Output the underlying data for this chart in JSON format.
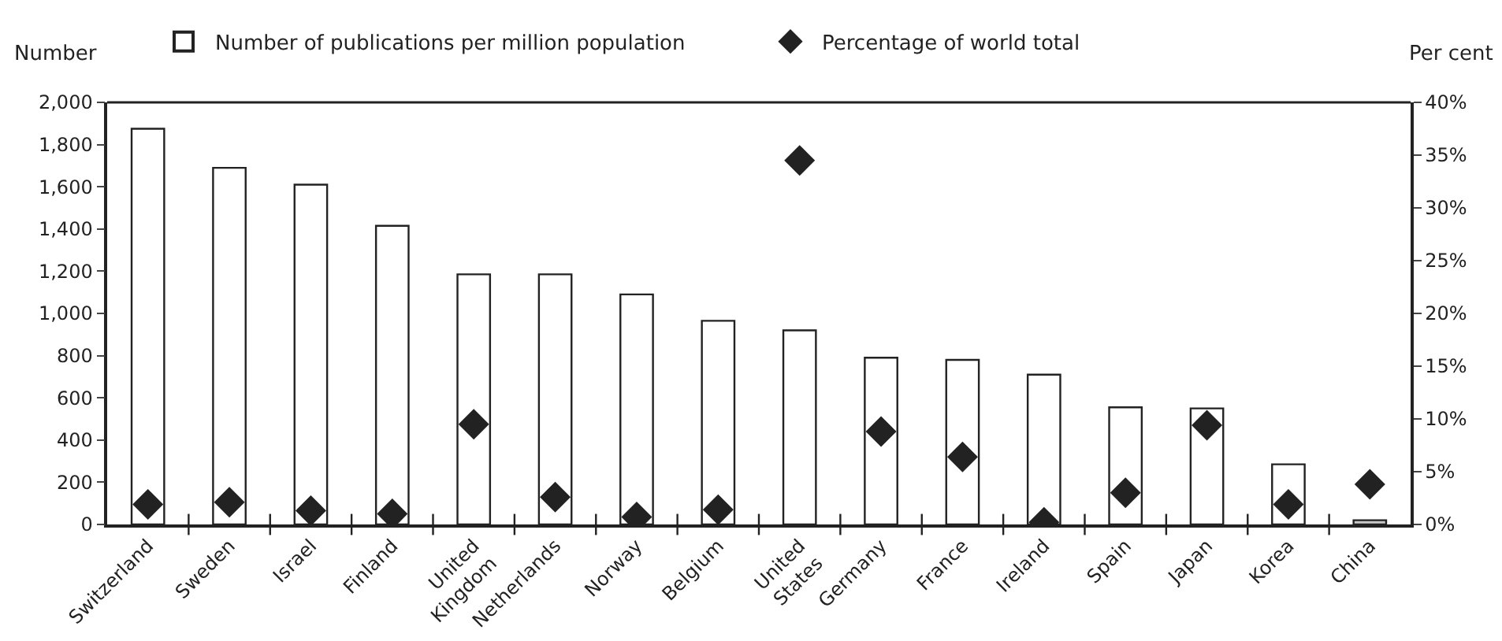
{
  "chart_data": {
    "type": "bar",
    "ylabel": "Number",
    "y2label": "Per cent",
    "categories": [
      "Switzerland",
      "Sweden",
      "Israel",
      "Finland",
      "United\nKingdom",
      "Netherlands",
      "Norway",
      "Belgium",
      "United\nStates",
      "Germany",
      "France",
      "Ireland",
      "Spain",
      "Japan",
      "Korea",
      "China"
    ],
    "series": [
      {
        "name": "Number of publications per million population",
        "colors": [
          "#ffffff",
          "#ffffff",
          "#ffffff",
          "#ffffff",
          "#ffffff",
          "#ffffff",
          "#ffffff",
          "#ffffff",
          "#ffffff",
          "#ffffff",
          "#ffffff",
          "#ffffff",
          "#ffffff",
          "#ffffff",
          "#ffffff",
          "#c8c8c8"
        ],
        "values": [
          1875,
          1690,
          1610,
          1415,
          1185,
          1185,
          1090,
          965,
          920,
          790,
          780,
          710,
          555,
          550,
          285,
          20
        ]
      },
      {
        "name": "Percentage of world total",
        "type": "scatter",
        "axis": "y2",
        "color": "#222222",
        "marker": "diamond",
        "values": [
          1.9,
          2.1,
          1.3,
          1.0,
          9.5,
          2.6,
          0.7,
          1.4,
          34.5,
          8.8,
          6.4,
          0.2,
          3.0,
          9.4,
          1.9,
          3.8
        ]
      }
    ],
    "ylim": [
      0,
      2000
    ],
    "yticks": [
      0,
      {
        "value": 200,
        "label": "200"
      },
      {
        "value": 400,
        "label": "400"
      },
      {
        "value": 600,
        "label": "600"
      },
      {
        "value": 800,
        "label": "800"
      },
      {
        "value": 1000,
        "label": "1,000"
      },
      {
        "value": 1200,
        "label": "1,200"
      },
      {
        "value": 1400,
        "label": "1,400"
      },
      {
        "value": 1600,
        "label": "1,600"
      },
      {
        "value": 1800,
        "label": "1,800"
      },
      {
        "value": 2000,
        "label": "2,000"
      }
    ],
    "y2lim": [
      0,
      40
    ],
    "y2ticks": [
      {
        "value": 0,
        "label": "0%"
      },
      {
        "value": 5,
        "label": "5%"
      },
      {
        "value": 10,
        "label": "10%"
      },
      {
        "value": 15,
        "label": "15%"
      },
      {
        "value": 20,
        "label": "20%"
      },
      {
        "value": 25,
        "label": "25%"
      },
      {
        "value": 30,
        "label": "30%"
      },
      {
        "value": 35,
        "label": "35%"
      },
      {
        "value": 40,
        "label": "40%"
      }
    ],
    "grid": false,
    "legend": "top"
  }
}
